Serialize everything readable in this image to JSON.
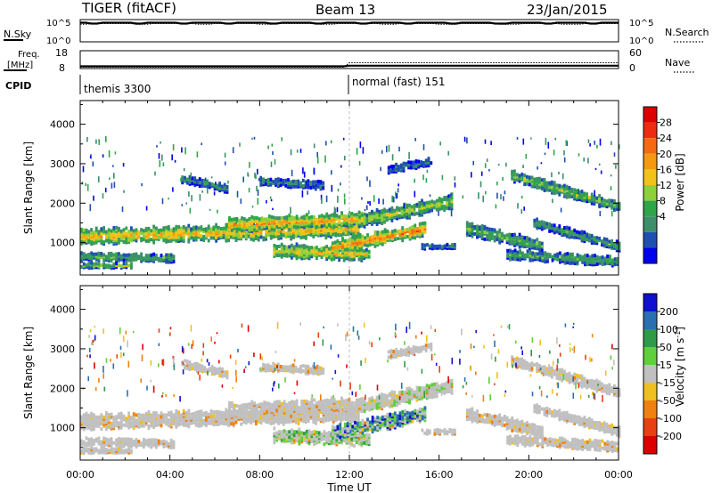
{
  "header": {
    "radar": "TIGER (fitACF)",
    "beam": "Beam 13",
    "date": "23/Jan/2015"
  },
  "nsky": {
    "label": "N.Sky",
    "tick_top": "10^5",
    "tick_bottom": "10^0",
    "right_label": "N.Search",
    "right_tick_top": "10^5",
    "right_tick_bottom": "10^0"
  },
  "freq": {
    "label_line1": "Freq.",
    "label_line2": "[MHz]",
    "tick_top": "18",
    "tick_bottom": "8",
    "right_label": "Nave",
    "right_tick_top": "60",
    "right_tick_bottom": "0"
  },
  "cpid": {
    "label": "CPID",
    "segments": [
      {
        "text": "themis 3300",
        "start_hour": 0
      },
      {
        "text": "normal (fast) 151",
        "start_hour": 12
      }
    ]
  },
  "chart_data": [
    {
      "type": "heatmap",
      "panel": "power",
      "ylabel": "Slant Range [km]",
      "yticks": [
        1000,
        2000,
        3000,
        4000
      ],
      "ylim": [
        180,
        4600
      ],
      "xticks": [
        "00:00",
        "04:00",
        "08:00",
        "12:00",
        "16:00",
        "20:00",
        "00:00"
      ],
      "xlim": [
        0,
        24
      ],
      "colorbar": {
        "label": "Power [dB]",
        "ticks": [
          "4",
          "8",
          "12",
          "16",
          "20",
          "24",
          "28"
        ],
        "colors": [
          "#0000ee",
          "#1f4fb0",
          "#3c8f6a",
          "#2fa54a",
          "#8fcf3a",
          "#f2c21a",
          "#f59a10",
          "#f36a10",
          "#ee2a10",
          "#dd0000"
        ]
      }
    },
    {
      "type": "heatmap",
      "panel": "velocity",
      "ylabel": "Slant Range [km]",
      "yticks": [
        1000,
        2000,
        3000,
        4000
      ],
      "ylim": [
        180,
        4600
      ],
      "xticks": [
        "00:00",
        "04:00",
        "08:00",
        "12:00",
        "16:00",
        "20:00",
        "00:00"
      ],
      "xlim": [
        0,
        24
      ],
      "xlabel": "Time UT",
      "colorbar": {
        "label": "Velocity [m s",
        "label_exp": "-1",
        "label_close": "]",
        "ticks": [
          "200",
          "100",
          "50",
          "15",
          "-15",
          "-50",
          "-100",
          "-200"
        ],
        "colors": [
          "#1010d0",
          "#2a6fb0",
          "#2f9a4a",
          "#5fcf3a",
          "#c0c0c0",
          "#f0c020",
          "#f08010",
          "#e84010",
          "#dd0000"
        ]
      }
    }
  ]
}
